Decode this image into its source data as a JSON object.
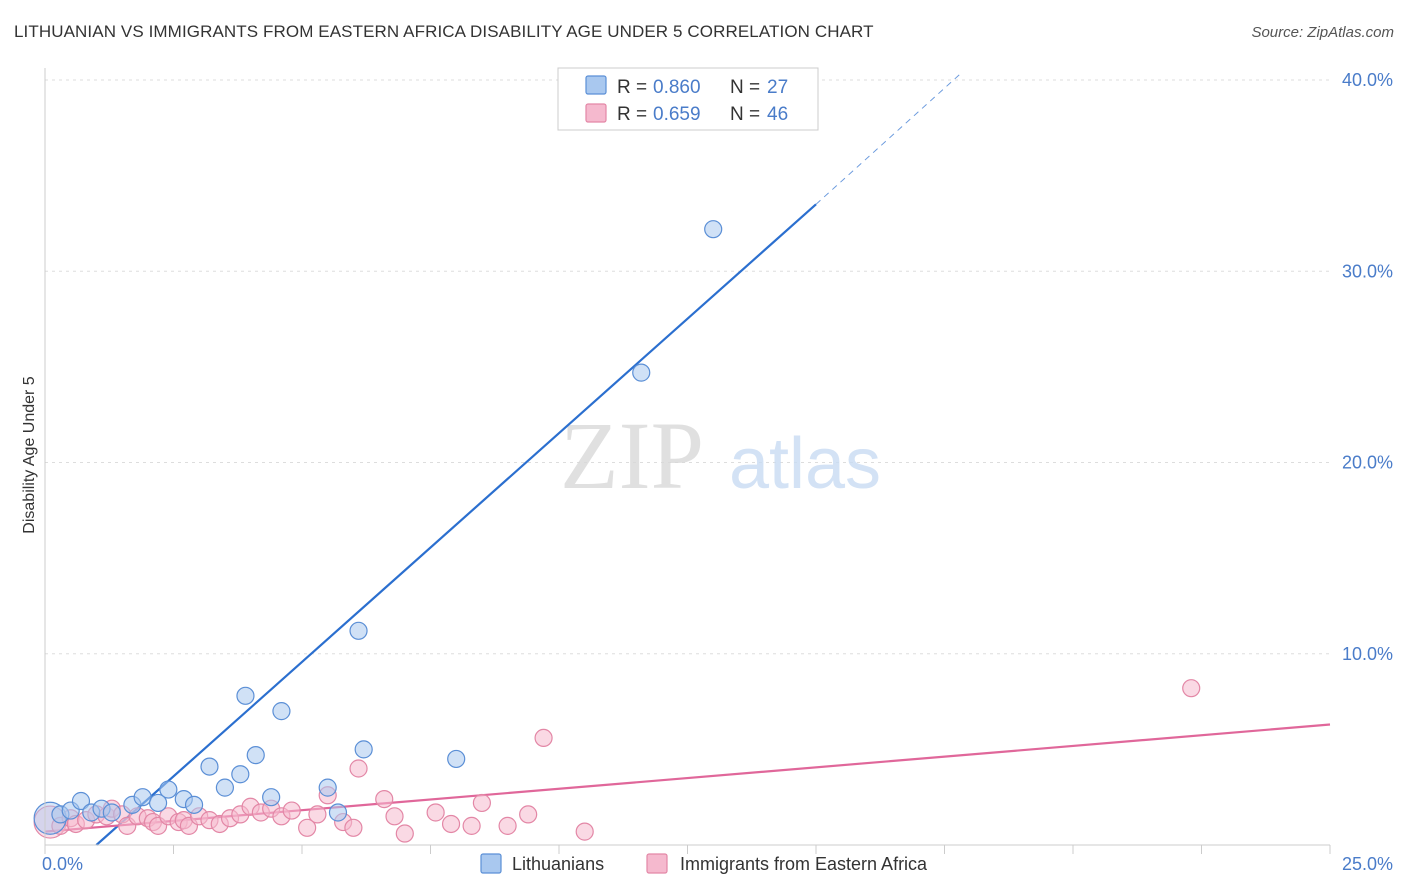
{
  "title": "LITHUANIAN VS IMMIGRANTS FROM EASTERN AFRICA DISABILITY AGE UNDER 5 CORRELATION CHART",
  "source": "Source: ZipAtlas.com",
  "watermark": {
    "zip": "ZIP",
    "atlas": "atlas"
  },
  "colors": {
    "blue_fill": "#a9c8ef",
    "blue_stroke": "#5b8fd6",
    "blue_line": "#2b6fcf",
    "pink_fill": "#f5b9ce",
    "pink_stroke": "#e387a6",
    "pink_line": "#e0679a",
    "grid": "#dddddd",
    "tick_text": "#4a7cc9"
  },
  "chart_data": {
    "type": "scatter",
    "title": "LITHUANIAN VS IMMIGRANTS FROM EASTERN AFRICA DISABILITY AGE UNDER 5 CORRELATION CHART",
    "xlabel": "",
    "ylabel": "Disability Age Under 5",
    "xlim": [
      0,
      25
    ],
    "ylim": [
      0,
      40
    ],
    "x_tick_labels": {
      "min": "0.0%",
      "max": "25.0%"
    },
    "y_ticks": [
      10,
      20,
      30,
      40
    ],
    "y_tick_labels": [
      "10.0%",
      "20.0%",
      "30.0%",
      "40.0%"
    ],
    "legend": {
      "r_label": "R =",
      "n_label": "N =",
      "entries": [
        {
          "series": "Lithuanians",
          "r": "0.860",
          "n": "27"
        },
        {
          "series": "Immigrants from Eastern Africa",
          "r": "0.659",
          "n": "46"
        }
      ]
    },
    "series": [
      {
        "name": "Lithuanians",
        "color": "blue",
        "trend": {
          "x0": 1.0,
          "y0": 0.0,
          "x1": 15.0,
          "y1": 33.5,
          "dash_to_x": 17.8,
          "dash_to_y": 40.3
        },
        "points": [
          {
            "x": 0.1,
            "y": 1.4,
            "big": true
          },
          {
            "x": 0.3,
            "y": 1.6
          },
          {
            "x": 0.5,
            "y": 1.8
          },
          {
            "x": 0.7,
            "y": 2.3
          },
          {
            "x": 0.9,
            "y": 1.7
          },
          {
            "x": 1.1,
            "y": 1.9
          },
          {
            "x": 1.3,
            "y": 1.7
          },
          {
            "x": 1.7,
            "y": 2.1
          },
          {
            "x": 1.9,
            "y": 2.5
          },
          {
            "x": 2.2,
            "y": 2.2
          },
          {
            "x": 2.4,
            "y": 2.9
          },
          {
            "x": 2.7,
            "y": 2.4
          },
          {
            "x": 2.9,
            "y": 2.1
          },
          {
            "x": 3.2,
            "y": 4.1
          },
          {
            "x": 3.5,
            "y": 3.0
          },
          {
            "x": 3.8,
            "y": 3.7
          },
          {
            "x": 3.9,
            "y": 7.8
          },
          {
            "x": 4.1,
            "y": 4.7
          },
          {
            "x": 4.4,
            "y": 2.5
          },
          {
            "x": 4.6,
            "y": 7.0
          },
          {
            "x": 5.5,
            "y": 3.0
          },
          {
            "x": 5.7,
            "y": 1.7
          },
          {
            "x": 6.1,
            "y": 11.2
          },
          {
            "x": 6.2,
            "y": 5.0
          },
          {
            "x": 8.0,
            "y": 4.5
          },
          {
            "x": 11.6,
            "y": 24.7
          },
          {
            "x": 13.0,
            "y": 32.2
          }
        ]
      },
      {
        "name": "Immigrants from Eastern Africa",
        "color": "pink",
        "trend": {
          "x0": 0.0,
          "y0": 0.7,
          "x1": 25.0,
          "y1": 6.3
        },
        "points": [
          {
            "x": 0.1,
            "y": 1.2,
            "big": true
          },
          {
            "x": 0.3,
            "y": 1.0
          },
          {
            "x": 0.5,
            "y": 1.4
          },
          {
            "x": 0.6,
            "y": 1.1
          },
          {
            "x": 0.8,
            "y": 1.3
          },
          {
            "x": 1.0,
            "y": 1.6
          },
          {
            "x": 1.2,
            "y": 1.5
          },
          {
            "x": 1.3,
            "y": 1.9
          },
          {
            "x": 1.5,
            "y": 1.6
          },
          {
            "x": 1.6,
            "y": 1.0
          },
          {
            "x": 1.8,
            "y": 1.5
          },
          {
            "x": 2.0,
            "y": 1.4
          },
          {
            "x": 2.1,
            "y": 1.2
          },
          {
            "x": 2.2,
            "y": 1.0
          },
          {
            "x": 2.4,
            "y": 1.5
          },
          {
            "x": 2.6,
            "y": 1.2
          },
          {
            "x": 2.7,
            "y": 1.3
          },
          {
            "x": 2.8,
            "y": 1.0
          },
          {
            "x": 3.0,
            "y": 1.5
          },
          {
            "x": 3.2,
            "y": 1.3
          },
          {
            "x": 3.4,
            "y": 1.1
          },
          {
            "x": 3.6,
            "y": 1.4
          },
          {
            "x": 3.8,
            "y": 1.6
          },
          {
            "x": 4.0,
            "y": 2.0
          },
          {
            "x": 4.2,
            "y": 1.7
          },
          {
            "x": 4.4,
            "y": 1.9
          },
          {
            "x": 4.6,
            "y": 1.5
          },
          {
            "x": 4.8,
            "y": 1.8
          },
          {
            "x": 5.1,
            "y": 0.9
          },
          {
            "x": 5.3,
            "y": 1.6
          },
          {
            "x": 5.5,
            "y": 2.6
          },
          {
            "x": 5.8,
            "y": 1.2
          },
          {
            "x": 6.0,
            "y": 0.9
          },
          {
            "x": 6.1,
            "y": 4.0
          },
          {
            "x": 6.6,
            "y": 2.4
          },
          {
            "x": 6.8,
            "y": 1.5
          },
          {
            "x": 7.0,
            "y": 0.6
          },
          {
            "x": 7.6,
            "y": 1.7
          },
          {
            "x": 7.9,
            "y": 1.1
          },
          {
            "x": 8.3,
            "y": 1.0
          },
          {
            "x": 8.5,
            "y": 2.2
          },
          {
            "x": 9.0,
            "y": 1.0
          },
          {
            "x": 9.4,
            "y": 1.6
          },
          {
            "x": 9.7,
            "y": 5.6
          },
          {
            "x": 10.5,
            "y": 0.7
          },
          {
            "x": 22.3,
            "y": 8.2
          }
        ]
      }
    ]
  }
}
